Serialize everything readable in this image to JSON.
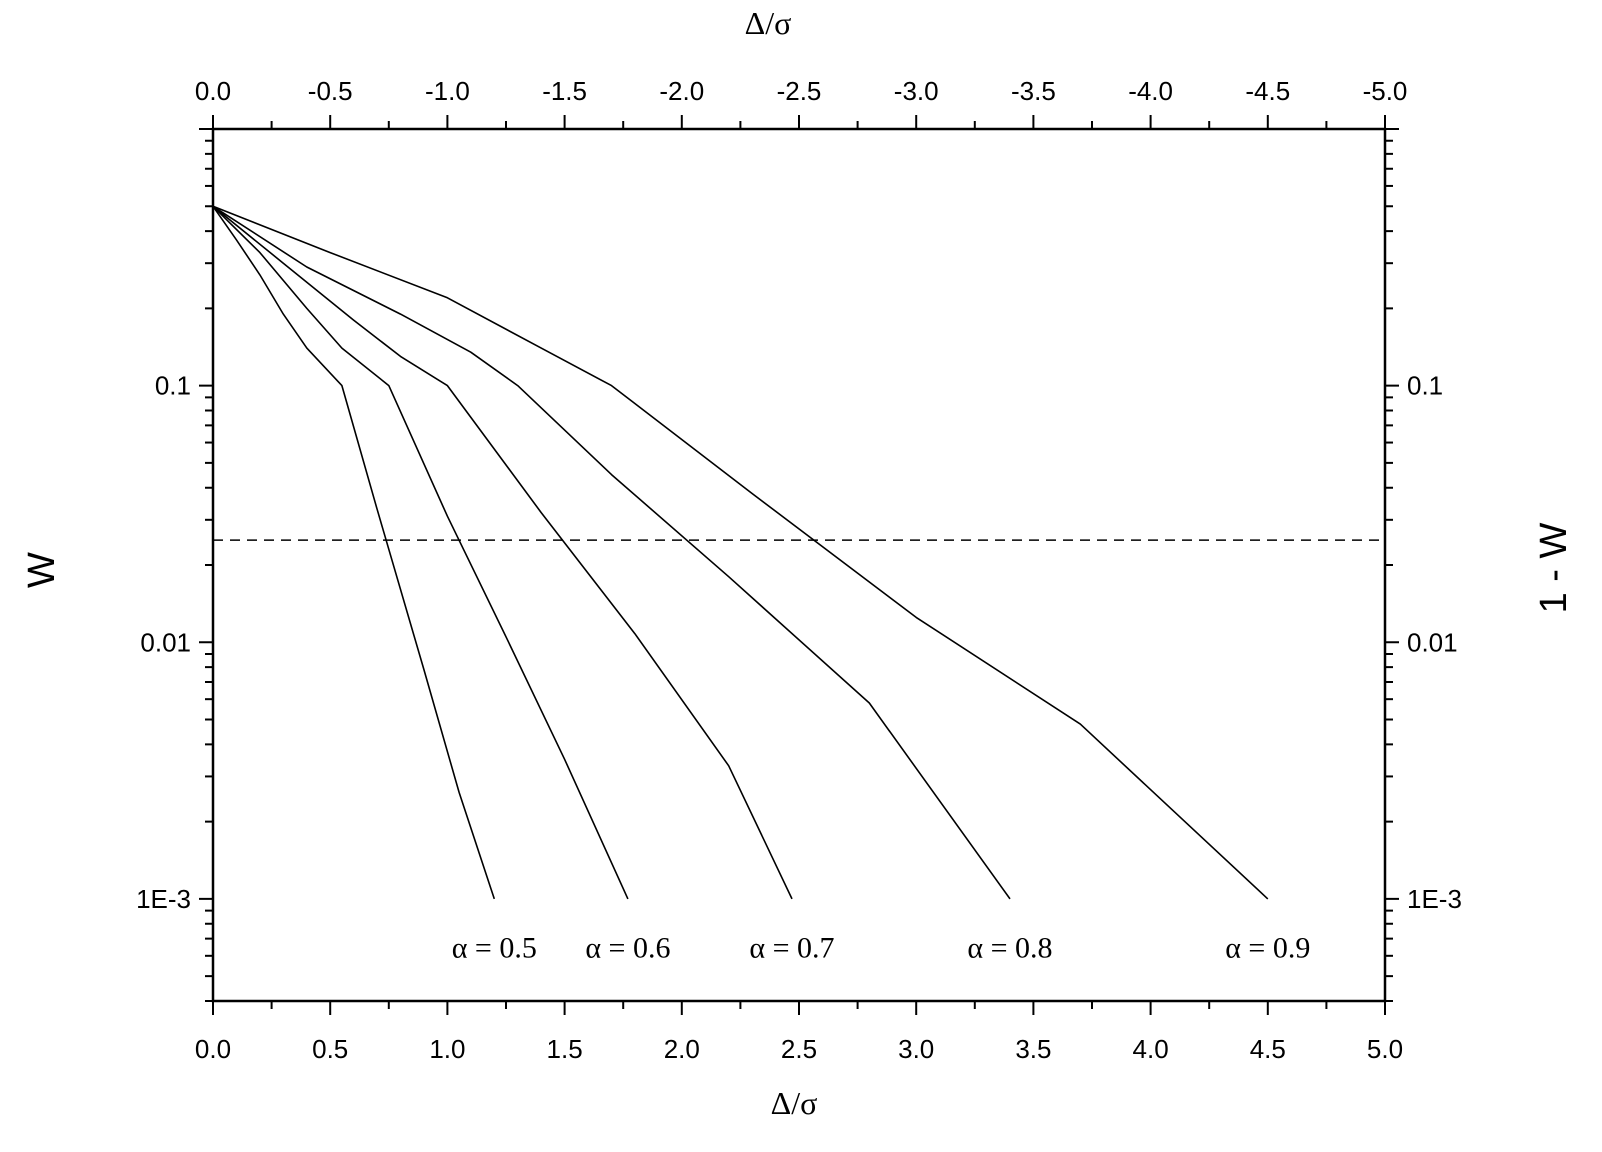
{
  "chart_data": {
    "type": "line",
    "xlabel_bottom": "Δ/σ",
    "xlabel_top": "Δ/σ",
    "ylabel_left": "W",
    "ylabel_right": "1 - W",
    "xlim": [
      0,
      5
    ],
    "ylim": [
      0.0004,
      1
    ],
    "yscale": "log",
    "grid": false,
    "x_ticks_bottom": [
      "0.0",
      "0.5",
      "1.0",
      "1.5",
      "2.0",
      "2.5",
      "3.0",
      "3.5",
      "4.0",
      "4.5",
      "5.0"
    ],
    "x_ticks_top": [
      "0.0",
      "-0.5",
      "-1.0",
      "-1.5",
      "-2.0",
      "-2.5",
      "-3.0",
      "-3.5",
      "-4.0",
      "-4.5",
      "-5.0"
    ],
    "y_ticks_left": [
      {
        "value": 0.1,
        "label": "0.1"
      },
      {
        "value": 0.01,
        "label": "0.01"
      },
      {
        "value": 0.001,
        "label": "1E-3"
      }
    ],
    "y_ticks_right": [
      {
        "value": 0.1,
        "label": "0.1"
      },
      {
        "value": 0.01,
        "label": "0.01"
      },
      {
        "value": 0.001,
        "label": "1E-3"
      }
    ],
    "series": [
      {
        "label": "α = 0.5",
        "label_at": [
          1.2,
          0.00072
        ],
        "x": [
          0,
          0.1,
          0.2,
          0.3,
          0.4,
          0.55,
          0.7,
          0.9,
          1.05,
          1.2
        ],
        "y": [
          0.5,
          0.37,
          0.27,
          0.19,
          0.14,
          0.1,
          0.033,
          0.0078,
          0.0026,
          0.001
        ]
      },
      {
        "label": "α = 0.6",
        "label_at": [
          1.77,
          0.00072
        ],
        "x": [
          0,
          0.2,
          0.4,
          0.55,
          0.75,
          1.0,
          1.25,
          1.5,
          1.77
        ],
        "y": [
          0.5,
          0.33,
          0.2,
          0.14,
          0.1,
          0.031,
          0.0105,
          0.0035,
          0.001
        ]
      },
      {
        "label": "α = 0.7",
        "label_at": [
          2.47,
          0.00072
        ],
        "x": [
          0,
          0.3,
          0.6,
          0.8,
          1.0,
          1.4,
          1.8,
          2.2,
          2.47
        ],
        "y": [
          0.5,
          0.3,
          0.18,
          0.13,
          0.1,
          0.032,
          0.0108,
          0.0033,
          0.001
        ]
      },
      {
        "label": "α = 0.8",
        "label_at": [
          3.4,
          0.00072
        ],
        "x": [
          0,
          0.4,
          0.8,
          1.1,
          1.3,
          1.7,
          2.2,
          2.8,
          3.4
        ],
        "y": [
          0.5,
          0.29,
          0.19,
          0.135,
          0.1,
          0.045,
          0.018,
          0.0058,
          0.001
        ]
      },
      {
        "label": "α = 0.9",
        "label_at": [
          4.5,
          0.00072
        ],
        "x": [
          0,
          0.5,
          1.0,
          1.4,
          1.7,
          2.3,
          3.0,
          3.7,
          4.5
        ],
        "y": [
          0.5,
          0.33,
          0.22,
          0.14,
          0.1,
          0.038,
          0.0125,
          0.0048,
          0.001
        ]
      }
    ],
    "reference_line": {
      "style": "dashed",
      "y": 0.025
    }
  }
}
